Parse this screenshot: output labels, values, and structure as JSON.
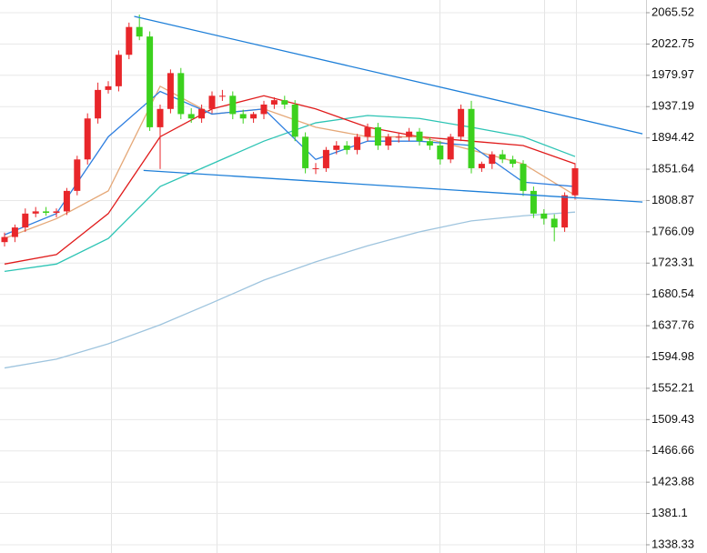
{
  "chart_data": {
    "type": "candlestick",
    "ylim": [
      1327.1,
      2082.9
    ],
    "yticks": [
      2065.52,
      2022.75,
      1979.97,
      1937.19,
      1894.42,
      1851.64,
      1808.87,
      1766.09,
      1723.31,
      1680.54,
      1637.76,
      1594.98,
      1552.21,
      1509.43,
      1466.66,
      1423.88,
      1381.1,
      1338.33
    ],
    "grid": true,
    "up_color": "#e8262a",
    "down_color": "#3cd11e",
    "open": [
      1752,
      1759,
      1772,
      1791,
      1794,
      1792,
      1794,
      1822,
      1865,
      1921,
      1960,
      1965,
      2008,
      2046,
      2033,
      1909,
      1934,
      1983,
      1927,
      1921,
      1934,
      1952,
      1952,
      1927,
      1921,
      1927,
      1940,
      1946,
      1940,
      1896,
      1853,
      1853,
      1878,
      1884,
      1878,
      1896,
      1909,
      1884,
      1896,
      1896,
      1903,
      1890,
      1884,
      1865,
      1896,
      1934,
      1853,
      1859,
      1872,
      1865,
      1859,
      1822,
      1791,
      1784,
      1772,
      1816
    ],
    "high": [
      1765,
      1776,
      1798,
      1800,
      1800,
      1798,
      1826,
      1870,
      1928,
      1970,
      1972,
      2014,
      2052,
      2063,
      2040,
      1940,
      1988,
      1990,
      1935,
      1940,
      1958,
      1960,
      1958,
      1933,
      1930,
      1945,
      1950,
      1952,
      1946,
      1902,
      1860,
      1882,
      1890,
      1890,
      1900,
      1914,
      1915,
      1900,
      1902,
      1908,
      1908,
      1895,
      1890,
      1900,
      1940,
      1945,
      1862,
      1876,
      1878,
      1870,
      1864,
      1828,
      1797,
      1790,
      1820,
      1860
    ],
    "low": [
      1746,
      1752,
      1766,
      1786,
      1788,
      1786,
      1789,
      1816,
      1858,
      1914,
      1955,
      1958,
      2002,
      2028,
      1904,
      1852,
      1928,
      1920,
      1915,
      1915,
      1928,
      1945,
      1920,
      1914,
      1915,
      1920,
      1934,
      1934,
      1890,
      1846,
      1845,
      1848,
      1872,
      1872,
      1872,
      1890,
      1878,
      1878,
      1888,
      1890,
      1884,
      1878,
      1858,
      1860,
      1890,
      1846,
      1848,
      1852,
      1860,
      1854,
      1815,
      1785,
      1776,
      1753,
      1766,
      1810
    ],
    "close": [
      1759,
      1772,
      1791,
      1794,
      1792,
      1794,
      1822,
      1865,
      1921,
      1960,
      1965,
      2008,
      2046,
      2033,
      1909,
      1934,
      1983,
      1927,
      1921,
      1934,
      1952,
      1952,
      1927,
      1921,
      1927,
      1940,
      1946,
      1940,
      1896,
      1853,
      1853,
      1878,
      1884,
      1878,
      1896,
      1909,
      1884,
      1896,
      1896,
      1903,
      1890,
      1884,
      1865,
      1896,
      1934,
      1853,
      1859,
      1872,
      1865,
      1859,
      1822,
      1791,
      1784,
      1772,
      1816,
      1853
    ],
    "ma_x": [
      0,
      5,
      10,
      15,
      20,
      25,
      30,
      35,
      40,
      45,
      50,
      55
    ],
    "series": [
      {
        "color": "#9ec4de",
        "values": [
          1580,
          1592,
          1613,
          1639,
          1669,
          1700,
          1725,
          1747,
          1766,
          1781,
          1788,
          1793
        ]
      },
      {
        "color": "#2cc4b4",
        "values": [
          1712,
          1722,
          1757,
          1828,
          1859,
          1890,
          1915,
          1925,
          1921,
          1909,
          1896,
          1869
        ]
      },
      {
        "color": "#e01b1b",
        "values": [
          1722,
          1735,
          1791,
          1896,
          1934,
          1952,
          1934,
          1909,
          1896,
          1890,
          1884,
          1859
        ]
      },
      {
        "color": "#e5a878",
        "values": [
          1757,
          1784,
          1822,
          1965,
          1927,
          1934,
          1909,
          1896,
          1896,
          1878,
          1859,
          1816
        ]
      },
      {
        "color": "#2f7fe0",
        "values": [
          1762,
          1791,
          1896,
          1958,
          1927,
          1934,
          1865,
          1890,
          1890,
          1884,
          1834,
          1828
        ]
      }
    ],
    "trendlines": [
      {
        "color": "#1e7fd8",
        "x": [
          12.5,
          61.5
        ],
        "values": [
          2060.5,
          1900
        ]
      },
      {
        "color": "#1e7fd8",
        "x": [
          13.4,
          61.5
        ],
        "values": [
          1850,
          1806.8
        ]
      }
    ]
  }
}
